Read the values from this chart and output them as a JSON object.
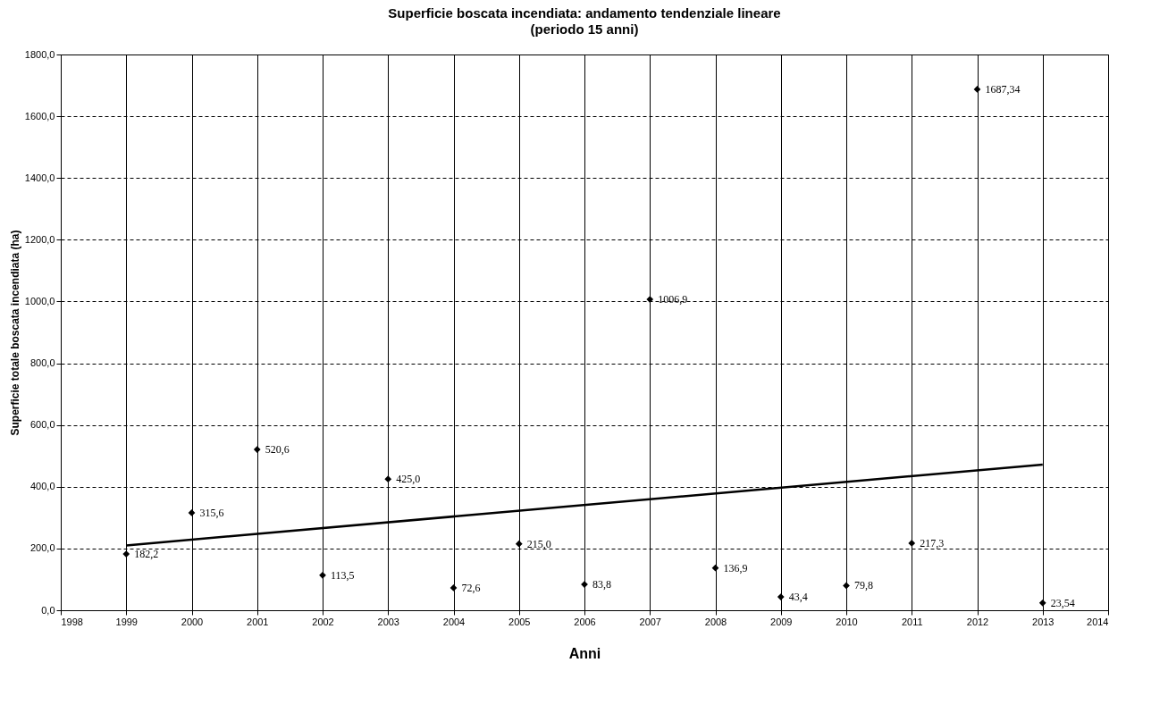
{
  "chart_data": {
    "type": "scatter",
    "title": "Superficie boscata incendiata: andamento tendenziale lineare",
    "subtitle": "(periodo 15 anni)",
    "xlabel": "Anni",
    "ylabel": "Superficie totale boscata incendiata (ha)",
    "x": [
      1999,
      2000,
      2001,
      2002,
      2003,
      2004,
      2005,
      2006,
      2007,
      2008,
      2009,
      2010,
      2011,
      2012,
      2013
    ],
    "series": [
      {
        "color": "#000000",
        "marker": "diamond",
        "values": [
          182.2,
          315.6,
          520.6,
          113.5,
          425.0,
          72.6,
          215.0,
          83.8,
          1006.9,
          136.9,
          43.4,
          79.8,
          217.3,
          1687.34,
          23.54
        ],
        "value_labels": [
          "182,2",
          "315,6",
          "520,6",
          "113,5",
          "425,0",
          "72,6",
          "215,0",
          "83,8",
          "1006,9",
          "136,9",
          "43,4",
          "79,8",
          "217,3",
          "1687,34",
          "23,54"
        ]
      },
      {
        "type": "line",
        "color": "#000000",
        "marker": "none",
        "x": [
          1999,
          2013
        ],
        "values": [
          210,
          472
        ]
      }
    ],
    "xlim": [
      1998,
      2014
    ],
    "xticks": [
      1998,
      1999,
      2000,
      2001,
      2002,
      2003,
      2004,
      2005,
      2006,
      2007,
      2008,
      2009,
      2010,
      2011,
      2012,
      2013,
      2014
    ],
    "ylim": [
      0,
      1800
    ],
    "yticks": [
      {
        "value": 0,
        "label": "0,0"
      },
      {
        "value": 200,
        "label": "200,0"
      },
      {
        "value": 400,
        "label": "400,0"
      },
      {
        "value": 600,
        "label": "600,0"
      },
      {
        "value": 800,
        "label": "800,0"
      },
      {
        "value": 1000,
        "label": "1000,0"
      },
      {
        "value": 1200,
        "label": "1200,0"
      },
      {
        "value": 1400,
        "label": "1400,0"
      },
      {
        "value": 1600,
        "label": "1600,0"
      },
      {
        "value": 1800,
        "label": "1800,0"
      }
    ],
    "grid": true
  }
}
